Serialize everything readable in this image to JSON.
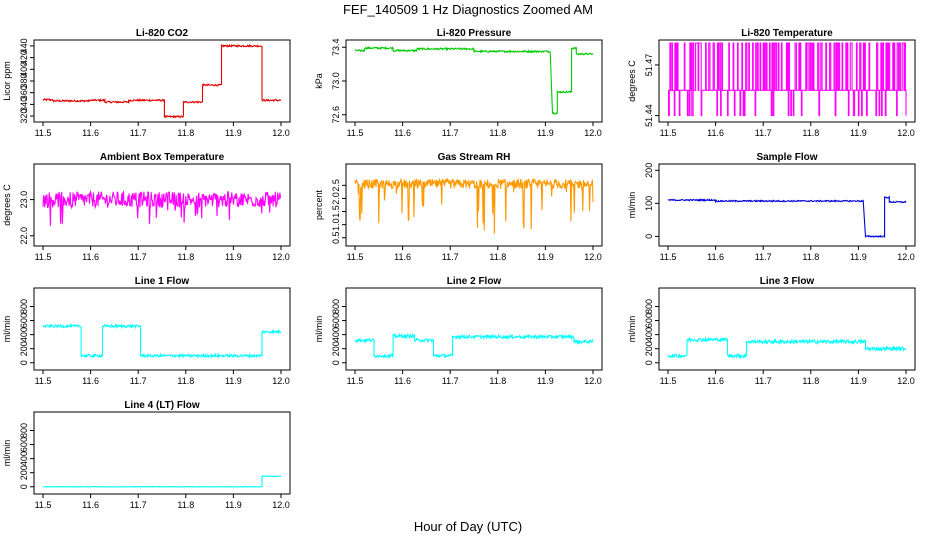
{
  "figure": {
    "title": "FEF_140509 1 Hz Diagnostics Zoomed AM",
    "xlabel": "Hour of Day (UTC)"
  },
  "chart_data": [
    {
      "type": "line",
      "title": "Li-820 CO2",
      "ylabel": "Licor ppm",
      "color": "#e00000",
      "xlim": [
        11.5,
        12.0
      ],
      "ylim": [
        315,
        445
      ],
      "xticks": [
        "11.5",
        "11.6",
        "11.7",
        "11.8",
        "11.9",
        "12.0"
      ],
      "yticks": [
        "320",
        "340",
        "360",
        "380",
        "400",
        "420",
        "440"
      ],
      "segments": [
        {
          "x0": 11.5,
          "x1": 11.52,
          "y": 348
        },
        {
          "x0": 11.52,
          "x1": 11.6,
          "y": 346
        },
        {
          "x0": 11.6,
          "x1": 11.63,
          "y": 347
        },
        {
          "x0": 11.63,
          "x1": 11.68,
          "y": 344
        },
        {
          "x0": 11.68,
          "x1": 11.755,
          "y": 347
        },
        {
          "x0": 11.755,
          "x1": 11.795,
          "y": 319
        },
        {
          "x0": 11.795,
          "x1": 11.835,
          "y": 344
        },
        {
          "x0": 11.835,
          "x1": 11.875,
          "y": 373
        },
        {
          "x0": 11.875,
          "x1": 11.96,
          "y": 440
        },
        {
          "x0": 11.96,
          "x1": 12.0,
          "y": 347
        }
      ],
      "noise": 1.5,
      "spikes": 0
    },
    {
      "type": "line",
      "title": "Li-820 Pressure",
      "ylabel": "kPa",
      "color": "#00cc00",
      "xlim": [
        11.5,
        12.0
      ],
      "ylim": [
        72.55,
        73.45
      ],
      "xticks": [
        "11.5",
        "11.6",
        "11.7",
        "11.8",
        "11.9",
        "12.0"
      ],
      "yticks": [
        "72.6",
        "73.0",
        "73.4"
      ],
      "segments": [
        {
          "x0": 11.5,
          "x1": 11.52,
          "y": 73.36
        },
        {
          "x0": 11.52,
          "x1": 11.58,
          "y": 73.39
        },
        {
          "x0": 11.58,
          "x1": 11.63,
          "y": 73.36
        },
        {
          "x0": 11.63,
          "x1": 11.75,
          "y": 73.38
        },
        {
          "x0": 11.75,
          "x1": 11.91,
          "y": 73.35
        },
        {
          "x0": 11.915,
          "x1": 11.925,
          "y": 72.62
        },
        {
          "x0": 11.925,
          "x1": 11.955,
          "y": 72.87
        },
        {
          "x0": 11.955,
          "x1": 11.965,
          "y": 73.39
        },
        {
          "x0": 11.965,
          "x1": 12.0,
          "y": 73.32
        }
      ],
      "noise": 0.01,
      "spikes": 0
    },
    {
      "type": "line",
      "title": "Li-820 Temperature",
      "ylabel": "degrees C",
      "color": "#ff00ff",
      "xlim": [
        11.5,
        12.0
      ],
      "ylim": [
        51.438,
        51.483
      ],
      "xticks": [
        "11.5",
        "11.6",
        "11.7",
        "11.8",
        "11.9",
        "12.0"
      ],
      "yticks": [
        "51.44",
        "51.47"
      ],
      "levels": [
        51.44,
        51.455,
        51.483
      ],
      "base_level": 1
    },
    {
      "type": "line",
      "title": "Ambient Box Temperature",
      "ylabel": "degrees C",
      "color": "#ff00ff",
      "xlim": [
        11.5,
        12.0
      ],
      "ylim": [
        21.8,
        23.9
      ],
      "xticks": [
        "11.5",
        "11.6",
        "11.7",
        "11.8",
        "11.9",
        "12.0"
      ],
      "yticks": [
        "22.0",
        "23.0"
      ],
      "segments": [
        {
          "x0": 11.5,
          "x1": 12.0,
          "y": 23.0
        }
      ],
      "noise": 0.22,
      "spikes": 0.6
    },
    {
      "type": "line",
      "title": "Gas Stream RH",
      "ylabel": "percent",
      "color": "#ff9900",
      "xlim": [
        11.5,
        12.0
      ],
      "ylim": [
        0.3,
        3.2
      ],
      "xticks": [
        "11.5",
        "11.6",
        "11.7",
        "11.8",
        "11.9",
        "12.0"
      ],
      "yticks": [
        "0.5",
        "1.0",
        "1.5",
        "2.0",
        "2.5"
      ],
      "segments": [
        {
          "x0": 11.5,
          "x1": 12.0,
          "y": 2.55
        }
      ],
      "noise": 0.18,
      "spikes": 1.9
    },
    {
      "type": "line",
      "title": "Sample Flow",
      "ylabel": "ml/min",
      "color": "#0000dd",
      "xlim": [
        11.5,
        12.0
      ],
      "ylim": [
        -20,
        210
      ],
      "xticks": [
        "11.5",
        "11.6",
        "11.7",
        "11.8",
        "11.9",
        "12.0"
      ],
      "yticks": [
        "0",
        "100",
        "200"
      ],
      "segments": [
        {
          "x0": 11.5,
          "x1": 11.6,
          "y": 110
        },
        {
          "x0": 11.6,
          "x1": 11.91,
          "y": 107
        },
        {
          "x0": 11.915,
          "x1": 11.955,
          "y": 0
        },
        {
          "x0": 11.955,
          "x1": 11.965,
          "y": 118
        },
        {
          "x0": 11.965,
          "x1": 12.0,
          "y": 104
        }
      ],
      "noise": 2,
      "spikes": 0
    },
    {
      "type": "line",
      "title": "Line 1 Flow",
      "ylabel": "ml/min",
      "color": "#00ffff",
      "xlim": [
        11.5,
        12.0
      ],
      "ylim": [
        -60,
        1020
      ],
      "xticks": [
        "11.5",
        "11.6",
        "11.7",
        "11.8",
        "11.9",
        "12.0"
      ],
      "yticks": [
        "0",
        "200",
        "400",
        "600",
        "800"
      ],
      "segments": [
        {
          "x0": 11.5,
          "x1": 11.58,
          "y": 520
        },
        {
          "x0": 11.58,
          "x1": 11.625,
          "y": 100
        },
        {
          "x0": 11.625,
          "x1": 11.705,
          "y": 520
        },
        {
          "x0": 11.705,
          "x1": 11.96,
          "y": 100
        },
        {
          "x0": 11.96,
          "x1": 12.0,
          "y": 440
        }
      ],
      "noise": 18,
      "spikes": 0
    },
    {
      "type": "line",
      "title": "Line 2 Flow",
      "ylabel": "ml/min",
      "color": "#00ffff",
      "xlim": [
        11.5,
        12.0
      ],
      "ylim": [
        -60,
        1020
      ],
      "xticks": [
        "11.5",
        "11.6",
        "11.7",
        "11.8",
        "11.9",
        "12.0"
      ],
      "yticks": [
        "0",
        "200",
        "400",
        "600",
        "800"
      ],
      "segments": [
        {
          "x0": 11.5,
          "x1": 11.54,
          "y": 320
        },
        {
          "x0": 11.54,
          "x1": 11.58,
          "y": 100
        },
        {
          "x0": 11.58,
          "x1": 11.625,
          "y": 380
        },
        {
          "x0": 11.625,
          "x1": 11.665,
          "y": 320
        },
        {
          "x0": 11.665,
          "x1": 11.705,
          "y": 100
        },
        {
          "x0": 11.705,
          "x1": 11.96,
          "y": 370
        },
        {
          "x0": 11.96,
          "x1": 12.0,
          "y": 300
        }
      ],
      "noise": 22,
      "spikes": 0
    },
    {
      "type": "line",
      "title": "Line 3 Flow",
      "ylabel": "ml/min",
      "color": "#00ffff",
      "xlim": [
        11.5,
        12.0
      ],
      "ylim": [
        -60,
        1020
      ],
      "xticks": [
        "11.5",
        "11.6",
        "11.7",
        "11.8",
        "11.9",
        "12.0"
      ],
      "yticks": [
        "0",
        "200",
        "400",
        "600",
        "800"
      ],
      "segments": [
        {
          "x0": 11.5,
          "x1": 11.54,
          "y": 100
        },
        {
          "x0": 11.54,
          "x1": 11.625,
          "y": 330
        },
        {
          "x0": 11.625,
          "x1": 11.665,
          "y": 100
        },
        {
          "x0": 11.665,
          "x1": 11.915,
          "y": 300
        },
        {
          "x0": 11.915,
          "x1": 12.0,
          "y": 200
        }
      ],
      "noise": 25,
      "spikes": 0
    },
    {
      "type": "line",
      "title": "Line 4 (LT) Flow",
      "ylabel": "ml/min",
      "color": "#00ffff",
      "xlim": [
        11.5,
        12.0
      ],
      "ylim": [
        -60,
        1020
      ],
      "xticks": [
        "11.5",
        "11.6",
        "11.7",
        "11.8",
        "11.9",
        "12.0"
      ],
      "yticks": [
        "0",
        "200",
        "400",
        "600",
        "800"
      ],
      "segments": [
        {
          "x0": 11.5,
          "x1": 11.96,
          "y": 0
        },
        {
          "x0": 11.96,
          "x1": 12.0,
          "y": 150
        }
      ],
      "noise": 3,
      "spikes": 0
    }
  ]
}
